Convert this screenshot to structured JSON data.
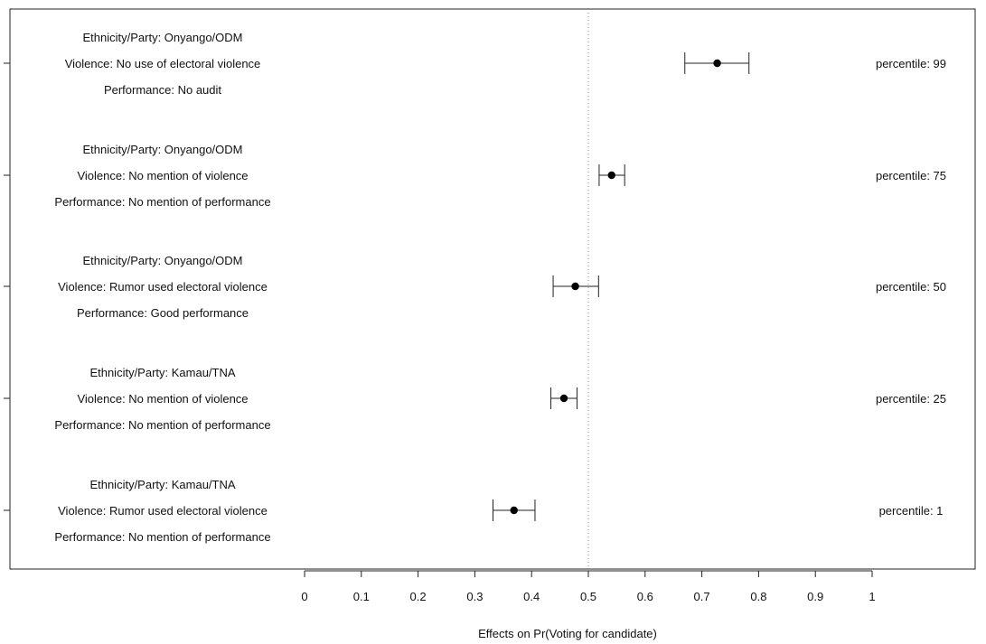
{
  "chart_data": {
    "type": "scatter",
    "xlabel": "Effects on Pr(Voting for candidate)",
    "xlim": [
      0,
      1
    ],
    "xticks": [
      "0",
      "0.1",
      "0.2",
      "0.3",
      "0.4",
      "0.5",
      "0.6",
      "0.7",
      "0.8",
      "0.9",
      "1"
    ],
    "reference_line": {
      "x": 0.5,
      "style": "dotted"
    },
    "profiles": [
      {
        "lines": [
          "Ethnicity/Party: Onyango/ODM",
          "Violence: No use of electoral violence",
          "Performance: No audit"
        ],
        "estimate": 0.727,
        "ci_low": 0.67,
        "ci_high": 0.783,
        "percentile_label": "percentile: 99"
      },
      {
        "lines": [
          "Ethnicity/Party: Onyango/ODM",
          "Violence: No mention of violence",
          "Performance: No mention of performance"
        ],
        "estimate": 0.541,
        "ci_low": 0.519,
        "ci_high": 0.564,
        "percentile_label": "percentile: 75"
      },
      {
        "lines": [
          "Ethnicity/Party: Onyango/ODM",
          "Violence: Rumor used electoral violence",
          "Performance: Good performance"
        ],
        "estimate": 0.477,
        "ci_low": 0.438,
        "ci_high": 0.518,
        "percentile_label": "percentile: 50"
      },
      {
        "lines": [
          "Ethnicity/Party: Kamau/TNA",
          "Violence: No mention of violence",
          "Performance: No mention of performance"
        ],
        "estimate": 0.457,
        "ci_low": 0.434,
        "ci_high": 0.48,
        "percentile_label": "percentile: 25"
      },
      {
        "lines": [
          "Ethnicity/Party: Kamau/TNA",
          "Violence: Rumor used electoral violence",
          "Performance: No mention of performance"
        ],
        "estimate": 0.369,
        "ci_low": 0.332,
        "ci_high": 0.406,
        "percentile_label": "percentile: 1"
      }
    ]
  }
}
